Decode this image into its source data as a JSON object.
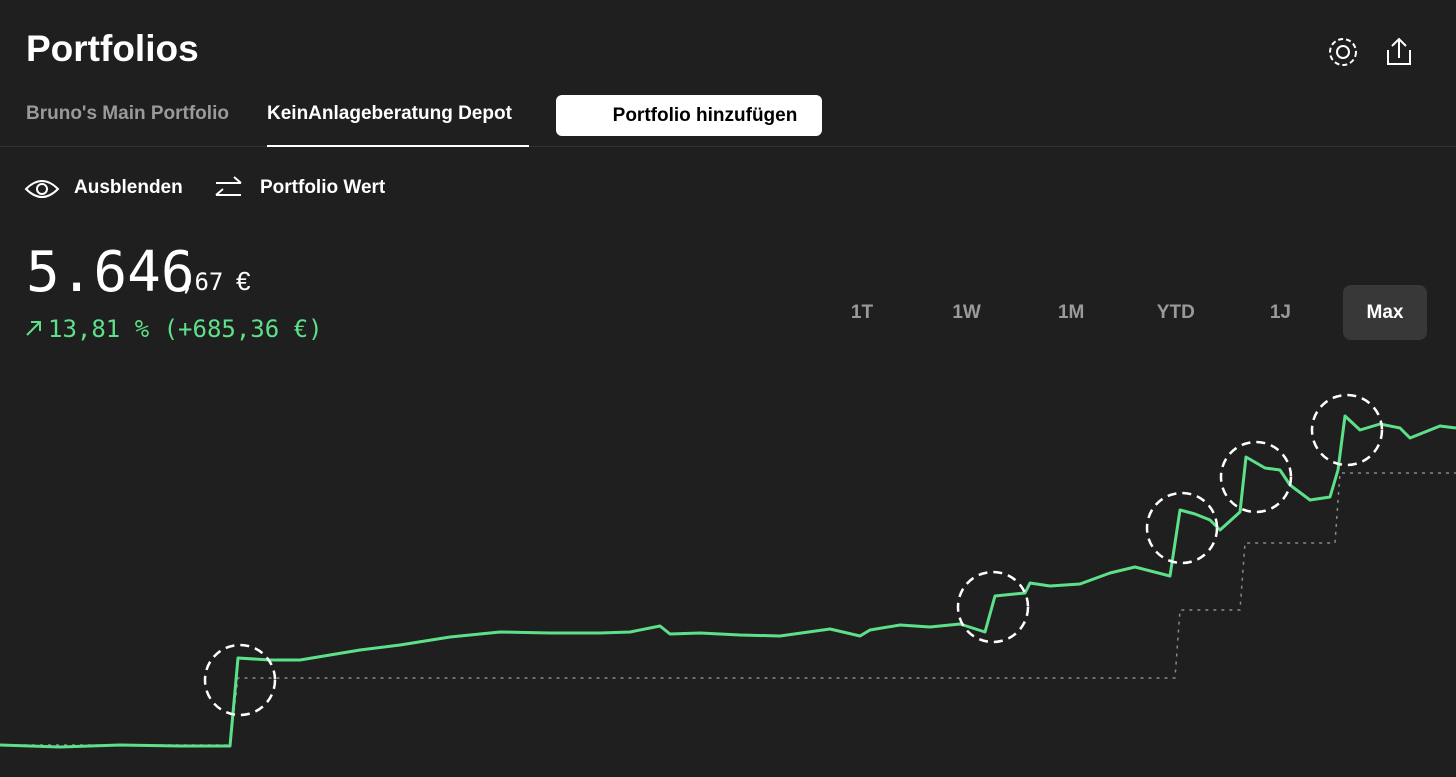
{
  "header": {
    "title": "Portfolios"
  },
  "tabs": [
    "Bruno's Main Portfolio",
    "KeinAnlageberatung Depot"
  ],
  "active_tab": 1,
  "add_button": "Portfolio hinzufügen",
  "toolbar": [
    "Ausblenden",
    "Portfolio Wert"
  ],
  "value": {
    "main": "5.646",
    "decimals": ",67",
    "currency": "€",
    "change": "13,81 % (+685,36 €)"
  },
  "ranges": [
    "1T",
    "1W",
    "1M",
    "YTD",
    "1J",
    "Max"
  ],
  "active_range": 5
}
